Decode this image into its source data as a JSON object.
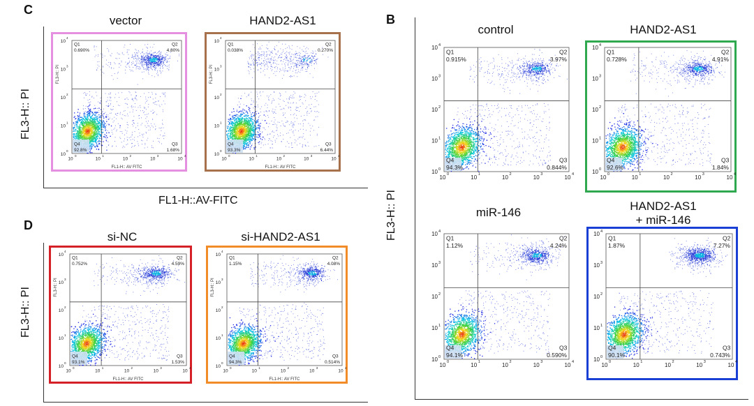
{
  "panels": {
    "C": {
      "letter": "C",
      "y_axis": "FL3-H:: PI",
      "x_axis": "FL1-H::AV-FITC",
      "plots": [
        {
          "title": "vector",
          "small_x": "FL1-H:: AV FITC",
          "small_y": "FL3-H:: PI",
          "q1": "0.690%",
          "q2": "4.80%",
          "q3": "1.68%",
          "q4": "92.8%",
          "border": "#e58fe0",
          "seed": 11,
          "bias": 1.0
        },
        {
          "title": "HAND2-AS1",
          "small_x": "FL1-H:: AV FITC",
          "small_y": "FL3-H:: PI",
          "q1": "0.038%",
          "q2": "0.270%",
          "q3": "6.44%",
          "q4": "93.3%",
          "border": "#a7714b",
          "seed": 23,
          "bias": 0.2
        }
      ]
    },
    "D": {
      "letter": "D",
      "y_axis": "FL3-H:: PI",
      "plots": [
        {
          "title": "si-NC",
          "small_x": "FL1-H:: AV FITC",
          "small_y": "FL3-H:: PI",
          "q1": "0.752%",
          "q2": "4.59%",
          "q3": "1.53%",
          "q4": "93.1%",
          "border": "#d62027",
          "seed": 37,
          "bias": 1.0
        },
        {
          "title": "si-HAND2-AS1",
          "small_x": "FL1-H:: AV FITC",
          "small_y": "FL3-H:: PI",
          "q1": "1.15%",
          "q2": "4.08%",
          "q3": "0.514%",
          "q4": "94.3%",
          "border": "#f28c28",
          "seed": 41,
          "bias": 0.9
        }
      ]
    },
    "B": {
      "letter": "B",
      "y_axis": "FL3-H:: PI",
      "plots": [
        {
          "title": "control",
          "q1": "0.915%",
          "q2": "3.97%",
          "q3": "0.844%",
          "q4": "94.3%",
          "border": "",
          "seed": 53,
          "bias": 0.9
        },
        {
          "title": "HAND2-AS1",
          "q1": "0.728%",
          "q2": "4.91%",
          "q3": "1.84%",
          "q4": "92.6%",
          "border": "#2fa84f",
          "seed": 67,
          "bias": 1.0
        },
        {
          "title": "miR-146",
          "q1": "1.12%",
          "q2": "4.24%",
          "q3": "0.590%",
          "q4": "94.1%",
          "border": "",
          "seed": 71,
          "bias": 1.1
        },
        {
          "title_line1": "HAND2-AS1",
          "title_line2": "+ miR-146",
          "q1": "1.87%",
          "q2": "7.27%",
          "q3": "0.743%",
          "q4": "90.1%",
          "border": "#1a3fd4",
          "seed": 83,
          "bias": 1.6
        }
      ]
    }
  },
  "tick_labels": [
    "10",
    "0",
    "10",
    "1",
    "10",
    "2",
    "10",
    "3",
    "10",
    "4"
  ]
}
